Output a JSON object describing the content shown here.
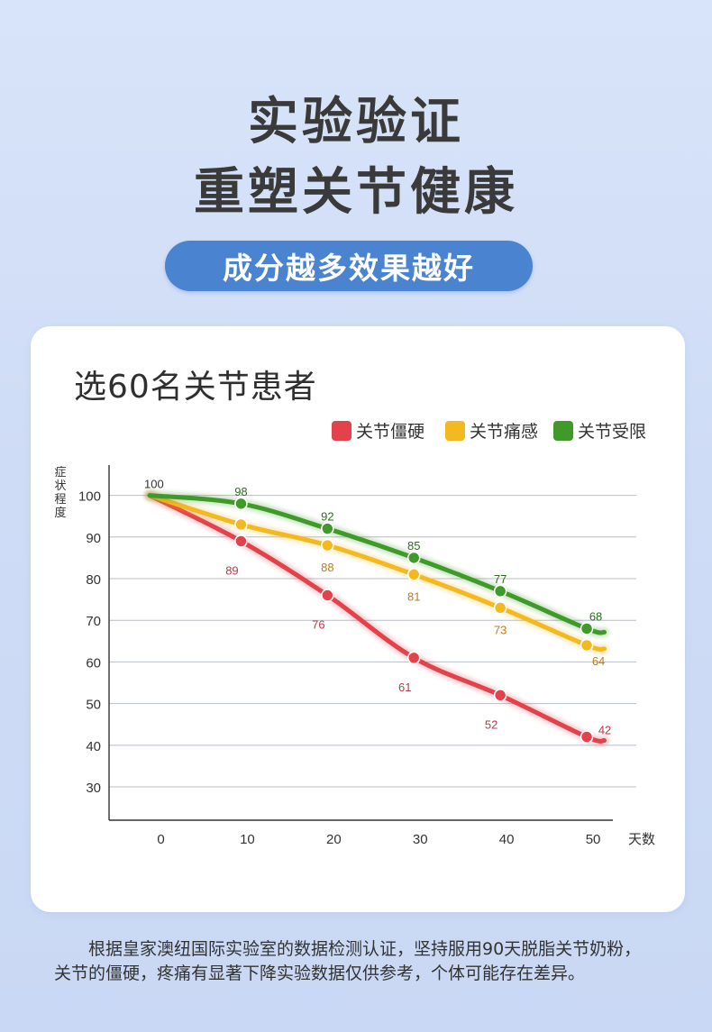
{
  "headline": {
    "line1": "实验验证",
    "line2": "重塑关节健康"
  },
  "pill_text": "成分越多效果越好",
  "card": {
    "heading": "选60名关节患者"
  },
  "chart_data": {
    "type": "line",
    "title": "",
    "xlabel": "天数",
    "ylabel": "症状程度",
    "x": [
      0,
      10,
      20,
      30,
      40,
      50
    ],
    "xticks": [
      0,
      10,
      20,
      30,
      40,
      50
    ],
    "yticks": [
      30,
      40,
      50,
      60,
      70,
      80,
      90,
      100
    ],
    "xlim": [
      -6,
      55
    ],
    "ylim": [
      22,
      109
    ],
    "grid": true,
    "legend_position": "top-right",
    "series": [
      {
        "name": "关节僵硬",
        "values": [
          100,
          89,
          76,
          61,
          52,
          42
        ],
        "color": "#e2424b",
        "label_color": "#b83a4a"
      },
      {
        "name": "关节痛感",
        "values": [
          100,
          93,
          88,
          81,
          73,
          64
        ],
        "color": "#f4b820",
        "label_color": "#c07b16"
      },
      {
        "name": "关节受限",
        "values": [
          100,
          98,
          92,
          85,
          77,
          68
        ],
        "color": "#3f9a2a",
        "label_color": "#2c6e1f"
      }
    ],
    "data_labels": [
      {
        "series": 2,
        "index": 0,
        "text": "100"
      },
      {
        "series": 0,
        "index": 1,
        "text": "89"
      },
      {
        "series": 0,
        "index": 2,
        "text": "76"
      },
      {
        "series": 0,
        "index": 3,
        "text": "61"
      },
      {
        "series": 0,
        "index": 4,
        "text": "52"
      },
      {
        "series": 0,
        "index": 5,
        "text": "42"
      },
      {
        "series": 1,
        "index": 2,
        "text": "88"
      },
      {
        "series": 1,
        "index": 3,
        "text": "81"
      },
      {
        "series": 1,
        "index": 4,
        "text": "73"
      },
      {
        "series": 1,
        "index": 5,
        "text": "64"
      },
      {
        "series": 2,
        "index": 1,
        "text": "98"
      },
      {
        "series": 2,
        "index": 2,
        "text": "92"
      },
      {
        "series": 2,
        "index": 3,
        "text": "85"
      },
      {
        "series": 2,
        "index": 4,
        "text": "77"
      },
      {
        "series": 2,
        "index": 5,
        "text": "68"
      }
    ]
  },
  "footnote": "根据皇家澳纽国际实验室的数据检测认证，坚持服用90天脱脂关节奶粉，关节的僵硬，疼痛有显著下降实验数据仅供参考，个体可能存在差异。"
}
